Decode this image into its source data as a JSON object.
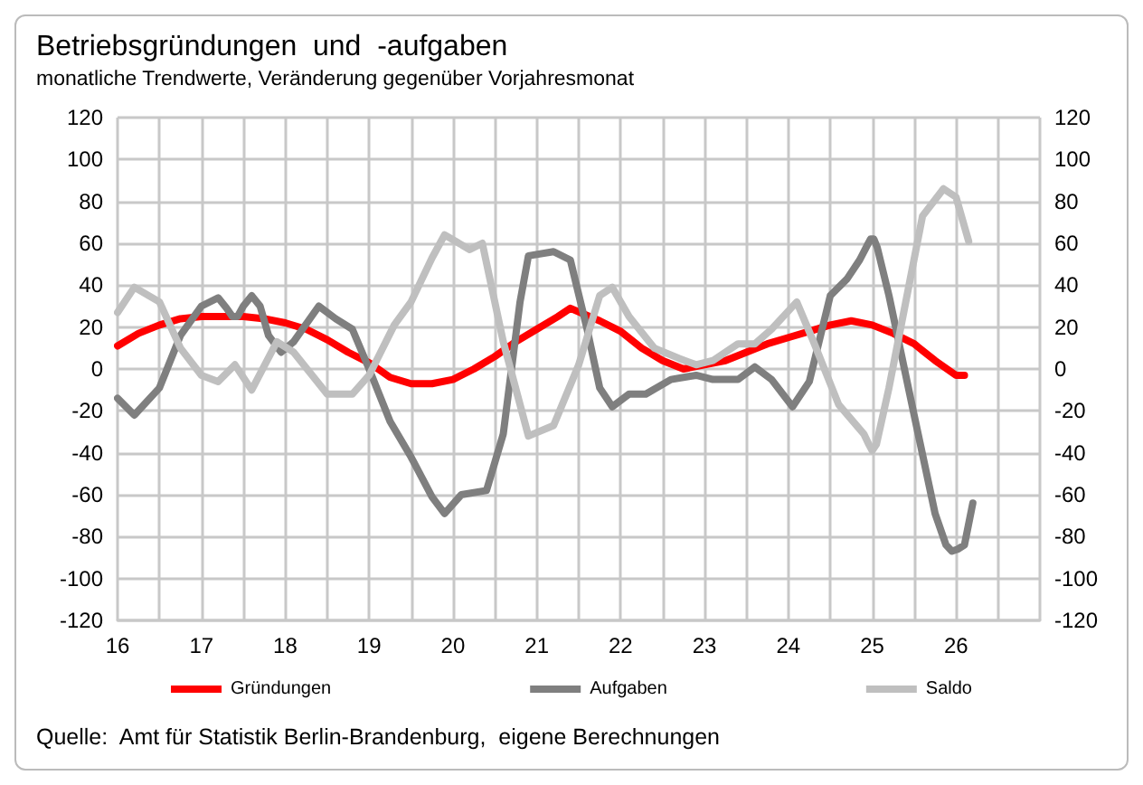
{
  "chart_data": {
    "type": "line",
    "title": "Betriebsgründungen  und  -aufgaben",
    "subtitle": "monatliche Trendwerte, Veränderung gegenüber Vorjahresmonat",
    "annotations": [
      "Quelle:  Amt für Statistik Berlin-Brandenburg,  eigene Berechnungen"
    ],
    "xlim": [
      16,
      27
    ],
    "xticks": [
      16,
      {
        "value": 16.5,
        "label": null
      },
      17,
      {
        "value": 17.5,
        "label": null
      },
      18,
      {
        "value": 18.5,
        "label": null
      },
      19,
      {
        "value": 19.5,
        "label": null
      },
      20,
      {
        "value": 20.5,
        "label": null
      },
      21,
      {
        "value": 21.5,
        "label": null
      },
      22,
      {
        "value": 22.5,
        "label": null
      },
      23,
      {
        "value": 23.5,
        "label": null
      },
      24,
      {
        "value": 24.5,
        "label": null
      },
      25,
      {
        "value": 25.5,
        "label": null
      },
      26,
      {
        "value": 26.5,
        "label": null
      },
      {
        "value": 27,
        "label": null
      }
    ],
    "ylim": [
      -120,
      120
    ],
    "yticks": [
      -120,
      -100,
      -80,
      -60,
      -40,
      -20,
      0,
      20,
      40,
      60,
      80,
      100,
      120
    ],
    "y2lim": [
      -120,
      120
    ],
    "y2ticks": [
      -120,
      -100,
      -80,
      -60,
      -40,
      -20,
      0,
      20,
      40,
      60,
      80,
      100,
      120
    ],
    "grid": true,
    "legend": "bottom",
    "marker": "none",
    "line_style": "solid",
    "series": [
      {
        "name": "Gründungen",
        "color": "#ff0000",
        "x": [
          16,
          16.25,
          16.5,
          16.75,
          17,
          17.5,
          17.75,
          18,
          18.25,
          18.5,
          18.75,
          19,
          19.25,
          19.5,
          19.75,
          20,
          20.25,
          20.5,
          20.75,
          21,
          21.25,
          21.4,
          21.75,
          22,
          22.25,
          22.5,
          22.75,
          23,
          23.25,
          23.5,
          23.75,
          24,
          24.25,
          24.5,
          24.75,
          25,
          25.25,
          25.5,
          25.75,
          26,
          26.1
        ],
        "values": [
          11,
          17,
          21,
          24,
          25,
          25,
          24,
          22,
          19,
          14,
          8,
          3,
          -4,
          -7,
          -7,
          -5,
          0,
          6,
          13,
          19,
          25,
          29,
          23,
          18,
          10,
          4,
          0,
          2,
          4,
          8,
          12,
          15,
          18,
          21,
          23,
          21,
          17,
          12,
          4,
          -3,
          -3
        ]
      },
      {
        "name": "Aufgaben",
        "color": "#7f7f7f",
        "x": [
          16,
          16.2,
          16.5,
          16.75,
          17,
          17.2,
          17.3,
          17.37,
          17.43,
          17.5,
          17.6,
          17.7,
          17.8,
          17.95,
          18.1,
          18.4,
          18.6,
          18.8,
          19,
          19.25,
          19.5,
          19.75,
          19.9,
          20.1,
          20.4,
          20.6,
          20.8,
          20.9,
          21.2,
          21.4,
          21.6,
          21.75,
          21.9,
          22.1,
          22.3,
          22.6,
          22.9,
          23.1,
          23.4,
          23.6,
          23.8,
          24.05,
          24.25,
          24.5,
          24.7,
          24.85,
          24.94,
          24.98,
          25.02,
          25.06,
          25.2,
          25.5,
          25.75,
          25.88,
          25.95,
          26.02,
          26.1,
          26.2
        ],
        "values": [
          -14,
          -22,
          -9,
          16,
          30,
          34,
          29,
          25,
          25,
          30,
          35,
          30,
          16,
          8,
          13,
          30,
          24,
          19,
          0,
          -25,
          -42,
          -61,
          -69,
          -60,
          -58,
          -31,
          32,
          54,
          56,
          52,
          19,
          -9,
          -18,
          -12,
          -12,
          -5,
          -3,
          -5,
          -5,
          1,
          -5,
          -18,
          -6,
          35,
          43,
          52,
          59,
          62,
          62,
          58,
          35,
          -22,
          -69,
          -84,
          -87,
          -86,
          -84,
          -64
        ]
      },
      {
        "name": "Saldo",
        "color": "#bfbfbf",
        "x": [
          16,
          16.2,
          16.5,
          16.75,
          17,
          17.2,
          17.4,
          17.6,
          17.9,
          18.1,
          18.5,
          18.8,
          19,
          19.3,
          19.5,
          19.75,
          19.9,
          20.2,
          20.35,
          20.6,
          20.9,
          21.2,
          21.5,
          21.75,
          21.9,
          22.1,
          22.4,
          22.7,
          22.9,
          23.1,
          23.4,
          23.6,
          23.8,
          24.1,
          24.3,
          24.6,
          24.9,
          24.96,
          25,
          25.05,
          25.2,
          25.4,
          25.6,
          25.85,
          26,
          26.15
        ],
        "values": [
          27,
          39,
          32,
          10,
          -3,
          -6,
          2,
          -10,
          13,
          8,
          -12,
          -12,
          -3,
          21,
          32,
          53,
          64,
          57,
          60,
          13,
          -32,
          -27,
          2,
          35,
          39,
          25,
          10,
          5,
          2,
          4,
          12,
          12,
          19,
          32,
          13,
          -17,
          -31,
          -36,
          -39,
          -36,
          -9,
          32,
          73,
          86,
          82,
          61
        ]
      }
    ]
  }
}
